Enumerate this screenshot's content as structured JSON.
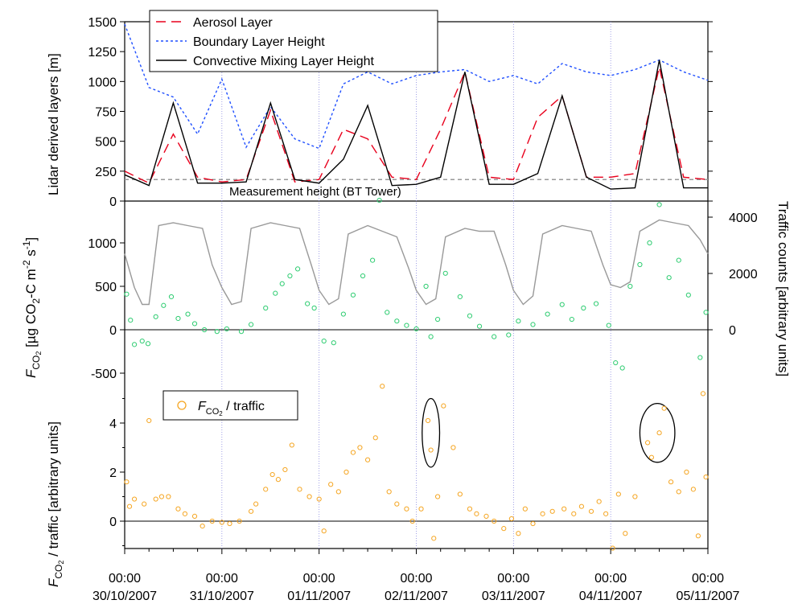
{
  "chart_data": [
    {
      "type": "line",
      "panel": "top",
      "ylabel": "Lidar derived layers [m]",
      "ylim": [
        0,
        1500
      ],
      "yticks": [
        "0",
        "250",
        "500",
        "750",
        "1000",
        "1250",
        "1500"
      ],
      "annotation": "Measurement height (BT Tower)",
      "reference_line_m": 180,
      "legend": {
        "position": "top-left",
        "entries": [
          "Aerosol Layer",
          "Boundary Layer Height",
          "Convective Mixing Layer Height"
        ]
      },
      "colors": {
        "aerosol": "#e8001c",
        "boundary": "#1f4fff",
        "mixing": "#000000",
        "reference": "#999999"
      },
      "x_days": [
        0,
        0.25,
        0.5,
        0.75,
        1,
        1.25,
        1.5,
        1.75,
        2,
        2.25,
        2.5,
        2.75,
        3,
        3.25,
        3.5,
        3.75,
        4,
        4.25,
        4.5,
        4.75,
        5,
        5.25,
        5.5,
        5.75,
        6
      ],
      "series": [
        {
          "name": "Aerosol Layer",
          "style": "dashed",
          "values": [
            250,
            150,
            560,
            200,
            160,
            180,
            760,
            160,
            180,
            600,
            520,
            200,
            180,
            600,
            1080,
            200,
            180,
            700,
            880,
            200,
            200,
            230,
            1120,
            200,
            180
          ]
        },
        {
          "name": "Boundary Layer Height",
          "style": "dotted",
          "values": [
            1480,
            950,
            870,
            560,
            1020,
            450,
            790,
            520,
            440,
            980,
            1080,
            980,
            1050,
            1080,
            1100,
            1000,
            1050,
            980,
            1150,
            1080,
            1050,
            1100,
            1180,
            1080,
            1010
          ]
        },
        {
          "name": "Convective Mixing Layer Height",
          "style": "solid",
          "values": [
            220,
            130,
            820,
            150,
            150,
            160,
            820,
            180,
            150,
            350,
            800,
            130,
            140,
            200,
            1080,
            140,
            140,
            230,
            880,
            200,
            100,
            110,
            1180,
            110,
            110
          ]
        }
      ]
    },
    {
      "type": "scatter",
      "panel": "middle",
      "ylabel": "F_CO2 [µg CO2-C m^-2 s^-1]",
      "ylim_left": [
        -600,
        1500
      ],
      "yticks_left": [
        "0",
        "500",
        "1000",
        "-500"
      ],
      "y2label": "Traffic counts [arbitrary units]",
      "yticks_right": [
        "0",
        "2000",
        "4000"
      ],
      "ylim_right": [
        0,
        4500
      ],
      "colors": {
        "flux": "#2ecc71",
        "traffic": "#999999"
      },
      "traffic_series": {
        "name": "Traffic counts",
        "x_days": [
          0,
          0.1,
          0.18,
          0.25,
          0.35,
          0.5,
          0.65,
          0.8,
          0.9,
          1.0,
          1.1,
          1.2,
          1.3,
          1.5,
          1.65,
          1.8,
          1.92,
          2.0,
          2.1,
          2.2,
          2.3,
          2.5,
          2.65,
          2.8,
          2.92,
          3.0,
          3.1,
          3.2,
          3.3,
          3.5,
          3.65,
          3.8,
          3.92,
          4.0,
          4.1,
          4.2,
          4.3,
          4.5,
          4.65,
          4.8,
          4.92,
          5.0,
          5.1,
          5.2,
          5.3,
          5.5,
          5.65,
          5.8,
          5.92,
          6.0
        ],
        "values": [
          2700,
          1500,
          900,
          900,
          3700,
          3800,
          3700,
          3600,
          2300,
          1500,
          900,
          1000,
          3600,
          3800,
          3700,
          3600,
          2300,
          1400,
          900,
          1100,
          3400,
          3700,
          3500,
          3300,
          2200,
          1400,
          900,
          1100,
          3300,
          3600,
          3500,
          3500,
          2300,
          1400,
          900,
          1200,
          3400,
          3700,
          3600,
          3500,
          2300,
          1600,
          1500,
          1700,
          3500,
          3900,
          3800,
          3700,
          3200,
          2700
        ]
      },
      "flux_points": [
        {
          "x": 0.02,
          "y": 410
        },
        {
          "x": 0.06,
          "y": 110
        },
        {
          "x": 0.1,
          "y": -170
        },
        {
          "x": 0.18,
          "y": -130
        },
        {
          "x": 0.24,
          "y": -160
        },
        {
          "x": 0.32,
          "y": 150
        },
        {
          "x": 0.4,
          "y": 280
        },
        {
          "x": 0.48,
          "y": 380
        },
        {
          "x": 0.55,
          "y": 130
        },
        {
          "x": 0.65,
          "y": 180
        },
        {
          "x": 0.72,
          "y": 70
        },
        {
          "x": 0.82,
          "y": 0
        },
        {
          "x": 0.95,
          "y": -20
        },
        {
          "x": 1.05,
          "y": 10
        },
        {
          "x": 1.2,
          "y": -20
        },
        {
          "x": 1.3,
          "y": 60
        },
        {
          "x": 1.45,
          "y": 250
        },
        {
          "x": 1.55,
          "y": 420
        },
        {
          "x": 1.62,
          "y": 530
        },
        {
          "x": 1.7,
          "y": 620
        },
        {
          "x": 1.78,
          "y": 700
        },
        {
          "x": 1.88,
          "y": 300
        },
        {
          "x": 1.95,
          "y": 250
        },
        {
          "x": 2.05,
          "y": -130
        },
        {
          "x": 2.15,
          "y": -150
        },
        {
          "x": 2.25,
          "y": 180
        },
        {
          "x": 2.35,
          "y": 400
        },
        {
          "x": 2.45,
          "y": 620
        },
        {
          "x": 2.55,
          "y": 800
        },
        {
          "x": 2.62,
          "y": 1490
        },
        {
          "x": 2.7,
          "y": 200
        },
        {
          "x": 2.8,
          "y": 100
        },
        {
          "x": 2.9,
          "y": 50
        },
        {
          "x": 3.0,
          "y": 10
        },
        {
          "x": 3.1,
          "y": 500
        },
        {
          "x": 3.15,
          "y": -80
        },
        {
          "x": 3.22,
          "y": 120
        },
        {
          "x": 3.3,
          "y": 650
        },
        {
          "x": 3.45,
          "y": 380
        },
        {
          "x": 3.55,
          "y": 160
        },
        {
          "x": 3.65,
          "y": 40
        },
        {
          "x": 3.8,
          "y": -80
        },
        {
          "x": 3.95,
          "y": -60
        },
        {
          "x": 4.05,
          "y": 100
        },
        {
          "x": 4.2,
          "y": 60
        },
        {
          "x": 4.35,
          "y": 180
        },
        {
          "x": 4.5,
          "y": 290
        },
        {
          "x": 4.6,
          "y": 120
        },
        {
          "x": 4.72,
          "y": 250
        },
        {
          "x": 4.85,
          "y": 300
        },
        {
          "x": 4.98,
          "y": 50
        },
        {
          "x": 5.05,
          "y": -380
        },
        {
          "x": 5.12,
          "y": -440
        },
        {
          "x": 5.2,
          "y": 500
        },
        {
          "x": 5.3,
          "y": 750
        },
        {
          "x": 5.4,
          "y": 1000
        },
        {
          "x": 5.5,
          "y": 1440
        },
        {
          "x": 5.6,
          "y": 600
        },
        {
          "x": 5.7,
          "y": 800
        },
        {
          "x": 5.8,
          "y": 400
        },
        {
          "x": 5.92,
          "y": -320
        },
        {
          "x": 5.98,
          "y": 200
        }
      ]
    },
    {
      "type": "scatter",
      "panel": "bottom",
      "ylabel": "F_CO2 / traffic [arbitrary units]",
      "ylim": [
        -1.2,
        5.5
      ],
      "yticks": [
        "0",
        "2",
        "4"
      ],
      "legend": {
        "position": "left",
        "entries": [
          "F_CO2 / traffic"
        ]
      },
      "colors": {
        "ratio": "#f5a623",
        "ellipse": "#000000"
      },
      "ellipses": [
        {
          "x_center": 3.15,
          "y_center": 3.6,
          "x_halfwidth": 0.09,
          "y_halfheight": 1.4
        },
        {
          "x_center": 5.48,
          "y_center": 3.6,
          "x_halfwidth": 0.18,
          "y_halfheight": 1.2
        }
      ],
      "points": [
        {
          "x": 0.02,
          "y": 1.6
        },
        {
          "x": 0.05,
          "y": 0.6
        },
        {
          "x": 0.1,
          "y": 0.9
        },
        {
          "x": 0.2,
          "y": 0.7
        },
        {
          "x": 0.25,
          "y": 4.1
        },
        {
          "x": 0.32,
          "y": 0.9
        },
        {
          "x": 0.38,
          "y": 1.0
        },
        {
          "x": 0.45,
          "y": 1.0
        },
        {
          "x": 0.55,
          "y": 0.5
        },
        {
          "x": 0.62,
          "y": 0.3
        },
        {
          "x": 0.72,
          "y": 0.2
        },
        {
          "x": 0.8,
          "y": -0.2
        },
        {
          "x": 0.9,
          "y": 0.0
        },
        {
          "x": 1.0,
          "y": -0.05
        },
        {
          "x": 1.08,
          "y": -0.1
        },
        {
          "x": 1.18,
          "y": 0.0
        },
        {
          "x": 1.3,
          "y": 0.4
        },
        {
          "x": 1.35,
          "y": 0.7
        },
        {
          "x": 1.45,
          "y": 1.3
        },
        {
          "x": 1.52,
          "y": 1.9
        },
        {
          "x": 1.58,
          "y": 1.7
        },
        {
          "x": 1.65,
          "y": 2.1
        },
        {
          "x": 1.72,
          "y": 3.1
        },
        {
          "x": 1.8,
          "y": 1.3
        },
        {
          "x": 1.9,
          "y": 1.0
        },
        {
          "x": 2.0,
          "y": 0.9
        },
        {
          "x": 2.05,
          "y": -0.4
        },
        {
          "x": 2.12,
          "y": 1.5
        },
        {
          "x": 2.2,
          "y": 1.2
        },
        {
          "x": 2.28,
          "y": 2.0
        },
        {
          "x": 2.35,
          "y": 2.8
        },
        {
          "x": 2.42,
          "y": 3.0
        },
        {
          "x": 2.5,
          "y": 2.5
        },
        {
          "x": 2.58,
          "y": 3.4
        },
        {
          "x": 2.65,
          "y": 5.5
        },
        {
          "x": 2.72,
          "y": 1.2
        },
        {
          "x": 2.8,
          "y": 0.7
        },
        {
          "x": 2.9,
          "y": 0.5
        },
        {
          "x": 2.96,
          "y": 0.0
        },
        {
          "x": 3.05,
          "y": 0.5
        },
        {
          "x": 3.12,
          "y": 4.1
        },
        {
          "x": 3.15,
          "y": 2.9
        },
        {
          "x": 3.18,
          "y": -0.7
        },
        {
          "x": 3.22,
          "y": 1.0
        },
        {
          "x": 3.28,
          "y": 4.7
        },
        {
          "x": 3.38,
          "y": 3.0
        },
        {
          "x": 3.45,
          "y": 1.1
        },
        {
          "x": 3.55,
          "y": 0.5
        },
        {
          "x": 3.62,
          "y": 0.3
        },
        {
          "x": 3.72,
          "y": 0.2
        },
        {
          "x": 3.8,
          "y": 0.0
        },
        {
          "x": 3.9,
          "y": -0.3
        },
        {
          "x": 3.98,
          "y": 0.1
        },
        {
          "x": 4.05,
          "y": -0.5
        },
        {
          "x": 4.12,
          "y": 0.5
        },
        {
          "x": 4.2,
          "y": -0.1
        },
        {
          "x": 4.3,
          "y": 0.3
        },
        {
          "x": 4.4,
          "y": 0.4
        },
        {
          "x": 4.52,
          "y": 0.5
        },
        {
          "x": 4.62,
          "y": 0.3
        },
        {
          "x": 4.7,
          "y": 0.6
        },
        {
          "x": 4.8,
          "y": 0.4
        },
        {
          "x": 4.88,
          "y": 0.8
        },
        {
          "x": 4.95,
          "y": 0.3
        },
        {
          "x": 5.02,
          "y": -1.1
        },
        {
          "x": 5.08,
          "y": 1.1
        },
        {
          "x": 5.15,
          "y": -0.5
        },
        {
          "x": 5.25,
          "y": 1.0
        },
        {
          "x": 5.38,
          "y": 3.2
        },
        {
          "x": 5.42,
          "y": 2.6
        },
        {
          "x": 5.5,
          "y": 3.6
        },
        {
          "x": 5.55,
          "y": 4.6
        },
        {
          "x": 5.62,
          "y": 1.6
        },
        {
          "x": 5.7,
          "y": 1.2
        },
        {
          "x": 5.78,
          "y": 2.0
        },
        {
          "x": 5.85,
          "y": 1.3
        },
        {
          "x": 5.9,
          "y": -0.6
        },
        {
          "x": 5.95,
          "y": 5.2
        },
        {
          "x": 5.98,
          "y": 1.8
        }
      ]
    }
  ],
  "x_axis": {
    "tick_labels": [
      {
        "time": "00:00",
        "date": "30/10/2007"
      },
      {
        "time": "00:00",
        "date": "31/10/2007"
      },
      {
        "time": "00:00",
        "date": "01/11/2007"
      },
      {
        "time": "00:00",
        "date": "02/11/2007"
      },
      {
        "time": "00:00",
        "date": "03/11/2007"
      },
      {
        "time": "00:00",
        "date": "04/11/2007"
      },
      {
        "time": "00:00",
        "date": "05/11/2007"
      }
    ],
    "range_days": [
      0,
      6
    ]
  }
}
